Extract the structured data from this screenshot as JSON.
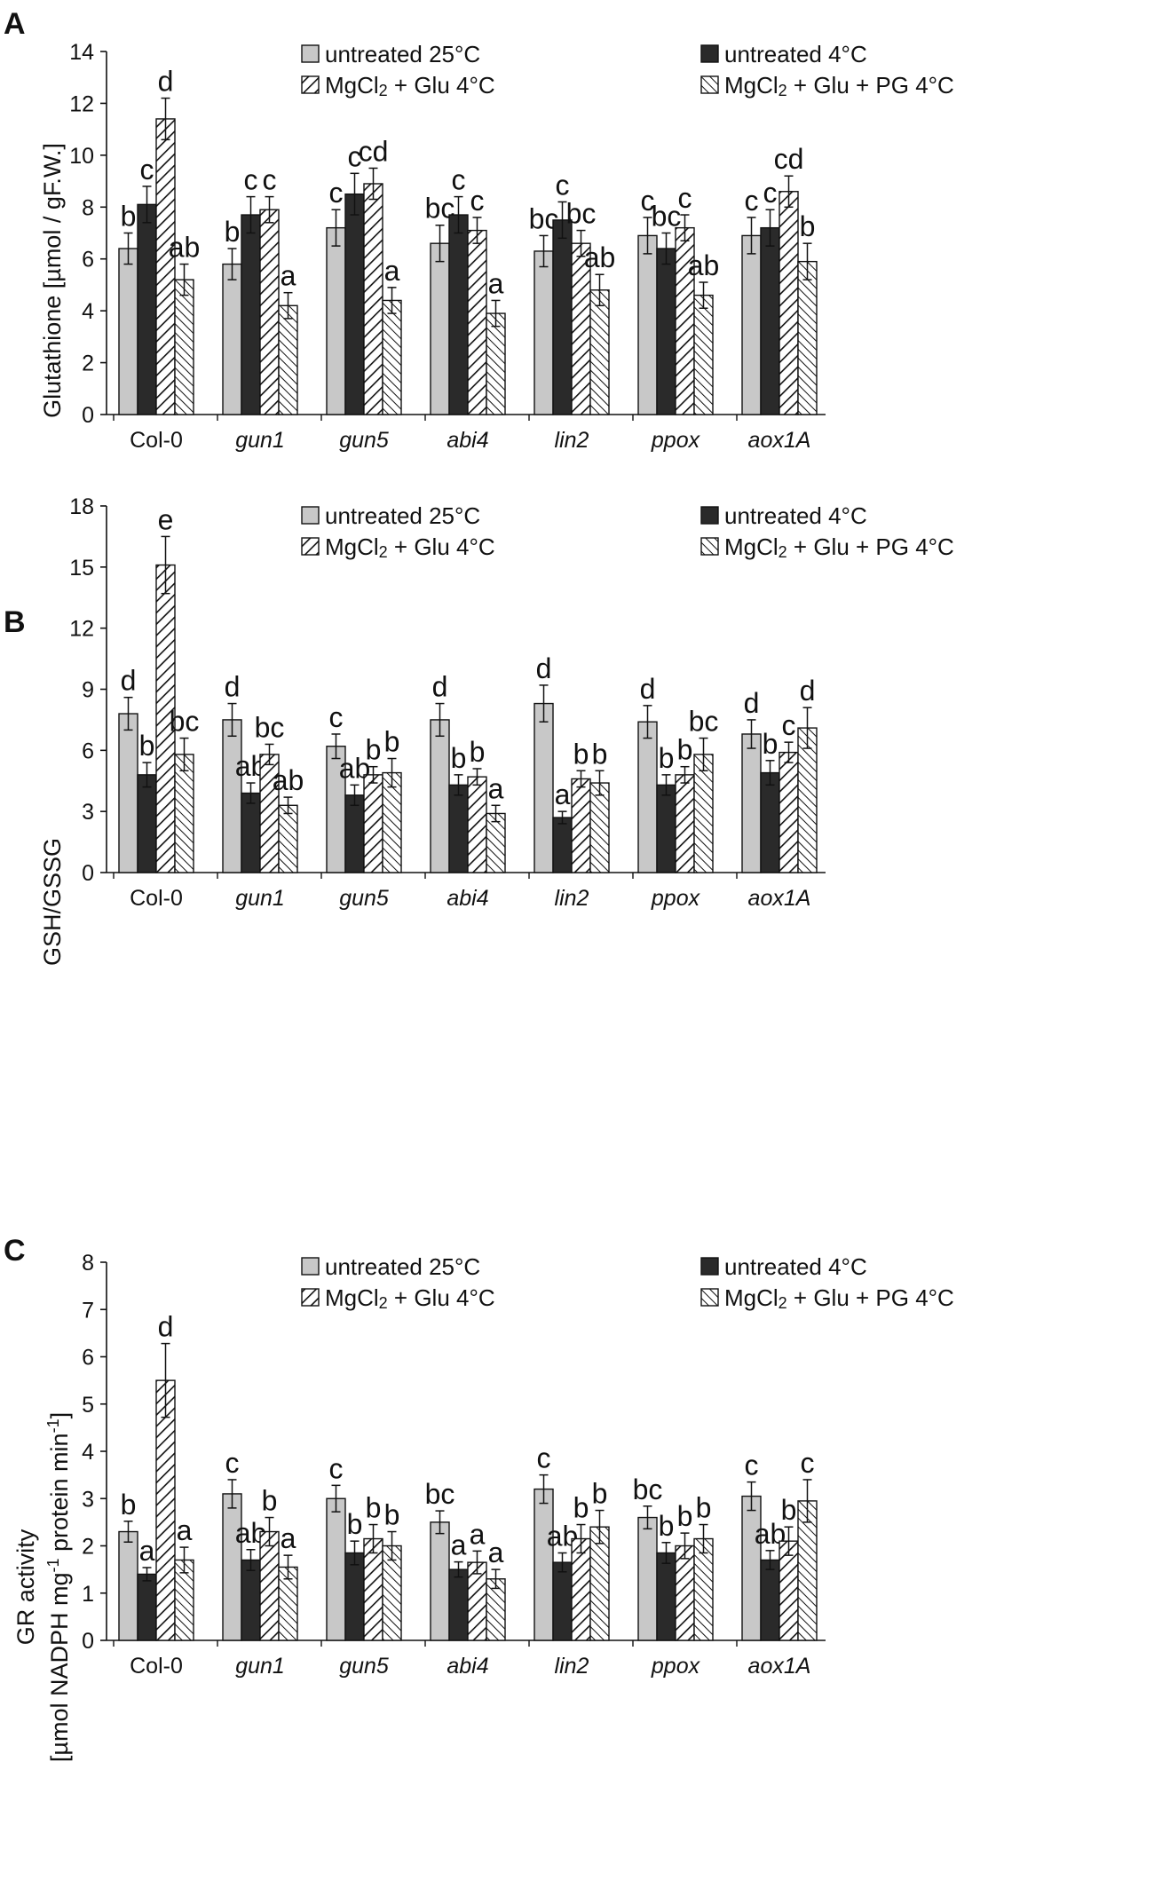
{
  "legend_labels": {
    "s0": "untreated 25°C",
    "s1": "untreated 4°C",
    "s2a": "MgCl",
    "s2sub": "2",
    "s2b": "+ Glu 4°C",
    "s3a": "MgCl",
    "s3sub": "2",
    "s3b": "+ Glu + PG 4°C"
  },
  "series_colors": [
    "#c8c8c8",
    "#2a2a2a",
    "#ffffff",
    "#ffffff"
  ],
  "chart_data": [
    {
      "type": "bar",
      "panel_label": "A",
      "ylabel": "Glutathione [µmol / gF.W.]",
      "ylim": [
        0,
        14
      ],
      "yticks": [
        "0",
        "2",
        "4",
        "6",
        "8",
        "10",
        "12",
        "14"
      ],
      "categories": [
        "Col-0",
        "gun1",
        "gun5",
        "abi4",
        "lin2",
        "ppox",
        "aox1A"
      ],
      "series": [
        {
          "name": "untreated 25°C",
          "values": [
            6.4,
            5.8,
            7.2,
            6.6,
            6.3,
            6.9,
            6.9
          ],
          "errors": [
            0.6,
            0.6,
            0.7,
            0.7,
            0.6,
            0.7,
            0.7
          ],
          "letters": [
            "b",
            "b",
            "c",
            "bc",
            "bc",
            "c",
            "c"
          ]
        },
        {
          "name": "untreated 4°C",
          "values": [
            8.1,
            7.7,
            8.5,
            7.7,
            7.5,
            6.4,
            7.2
          ],
          "errors": [
            0.7,
            0.7,
            0.8,
            0.7,
            0.7,
            0.6,
            0.7
          ],
          "letters": [
            "c",
            "c",
            "c",
            "c",
            "c",
            "bc",
            "c"
          ]
        },
        {
          "name": "MgCl2 + Glu 4°C",
          "values": [
            11.4,
            7.9,
            8.9,
            7.1,
            6.6,
            7.2,
            8.6
          ],
          "errors": [
            0.8,
            0.5,
            0.6,
            0.5,
            0.5,
            0.5,
            0.6
          ],
          "letters": [
            "d",
            "c",
            "cd",
            "c",
            "bc",
            "c",
            "cd"
          ]
        },
        {
          "name": "MgCl2 + Glu + PG 4°C",
          "values": [
            5.2,
            4.2,
            4.4,
            3.9,
            4.8,
            4.6,
            5.9
          ],
          "errors": [
            0.6,
            0.5,
            0.5,
            0.5,
            0.6,
            0.5,
            0.7
          ],
          "letters": [
            "ab",
            "a",
            "a",
            "a",
            "ab",
            "ab",
            "b"
          ]
        }
      ]
    },
    {
      "type": "bar",
      "panel_label": "B",
      "ylabel": "GSH/GSSG",
      "ylim": [
        0,
        18
      ],
      "yticks": [
        "0",
        "3",
        "6",
        "9",
        "12",
        "15",
        "18"
      ],
      "categories": [
        "Col-0",
        "gun1",
        "gun5",
        "abi4",
        "lin2",
        "ppox",
        "aox1A"
      ],
      "series": [
        {
          "name": "untreated 25°C",
          "values": [
            7.8,
            7.5,
            6.2,
            7.5,
            8.3,
            7.4,
            6.8
          ],
          "errors": [
            0.8,
            0.8,
            0.6,
            0.8,
            0.9,
            0.8,
            0.7
          ],
          "letters": [
            "d",
            "d",
            "c",
            "d",
            "d",
            "d",
            "d"
          ]
        },
        {
          "name": "untreated 4°C",
          "values": [
            4.8,
            3.9,
            3.8,
            4.3,
            2.7,
            4.3,
            4.9
          ],
          "errors": [
            0.6,
            0.5,
            0.5,
            0.5,
            0.3,
            0.5,
            0.6
          ],
          "letters": [
            "b",
            "ab",
            "ab",
            "b",
            "a",
            "b",
            "b"
          ]
        },
        {
          "name": "MgCl2 + Glu 4°C",
          "values": [
            15.1,
            5.8,
            4.8,
            4.7,
            4.6,
            4.8,
            5.9
          ],
          "errors": [
            1.4,
            0.5,
            0.4,
            0.4,
            0.4,
            0.4,
            0.5
          ],
          "letters": [
            "e",
            "bc",
            "b",
            "b",
            "b",
            "b",
            "c"
          ]
        },
        {
          "name": "MgCl2 + Glu + PG 4°C",
          "values": [
            5.8,
            3.3,
            4.9,
            2.9,
            4.4,
            5.8,
            7.1
          ],
          "errors": [
            0.8,
            0.4,
            0.7,
            0.4,
            0.6,
            0.8,
            1.0
          ],
          "letters": [
            "bc",
            "ab",
            "b",
            "a",
            "b",
            "bc",
            "d"
          ]
        }
      ]
    },
    {
      "type": "bar",
      "panel_label": "C",
      "ylabel_line1": "GR activity",
      "ylabel_line2_a": "[µmol NADPH mg",
      "ylabel_line2_sup1": "-1",
      "ylabel_line2_b": " protein min",
      "ylabel_line2_sup2": "-1",
      "ylabel_line2_c": "]",
      "ylim": [
        0,
        8
      ],
      "yticks": [
        "0",
        "1",
        "2",
        "3",
        "4",
        "5",
        "6",
        "7",
        "8"
      ],
      "categories": [
        "Col-0",
        "gun1",
        "gun5",
        "abi4",
        "lin2",
        "ppox",
        "aox1A"
      ],
      "series": [
        {
          "name": "untreated 25°C",
          "values": [
            2.3,
            3.1,
            3.0,
            2.5,
            3.2,
            2.6,
            3.05
          ],
          "errors": [
            0.22,
            0.3,
            0.28,
            0.24,
            0.3,
            0.24,
            0.3
          ],
          "letters": [
            "b",
            "c",
            "c",
            "bc",
            "c",
            "bc",
            "c"
          ]
        },
        {
          "name": "untreated 4°C",
          "values": [
            1.4,
            1.7,
            1.85,
            1.5,
            1.65,
            1.85,
            1.7
          ],
          "errors": [
            0.14,
            0.22,
            0.25,
            0.16,
            0.2,
            0.22,
            0.2
          ],
          "letters": [
            "a",
            "ab",
            "b",
            "a",
            "ab",
            "b",
            "ab"
          ]
        },
        {
          "name": "MgCl2 + Glu 4°C",
          "values": [
            5.5,
            2.3,
            2.15,
            1.65,
            2.15,
            2.0,
            2.1
          ],
          "errors": [
            0.78,
            0.3,
            0.3,
            0.24,
            0.3,
            0.27,
            0.3
          ],
          "letters": [
            "d",
            "b",
            "b",
            "a",
            "b",
            "b",
            "b"
          ]
        },
        {
          "name": "MgCl2 + Glu + PG 4°C",
          "values": [
            1.7,
            1.55,
            2.0,
            1.3,
            2.4,
            2.15,
            2.95
          ],
          "errors": [
            0.27,
            0.25,
            0.3,
            0.2,
            0.35,
            0.3,
            0.45
          ],
          "letters": [
            "a",
            "a",
            "b",
            "a",
            "b",
            "b",
            "c"
          ]
        }
      ]
    }
  ]
}
